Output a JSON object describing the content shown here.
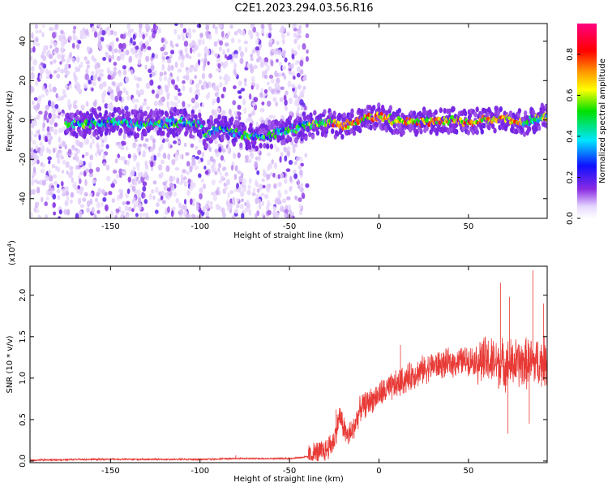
{
  "title": "C2E1.2023.294.03.56.R16",
  "colors": {
    "snr_line": "#e83a36",
    "spectrogram_low": "#d8c6f4",
    "spectrogram_mid": "#7a1fe0",
    "axes": "#000000"
  },
  "chart_data": [
    {
      "type": "heatmap",
      "xlabel": "Height of straight line (km)",
      "ylabel": "Frequency (Hz)",
      "xlim": [
        -195,
        94
      ],
      "ylim": [
        -50,
        49
      ],
      "xticks": [
        -150,
        -100,
        -50,
        0,
        50
      ],
      "yticks": [
        -40,
        -20,
        0,
        20,
        40
      ],
      "grid": false,
      "colorbar": {
        "label": "Normalized spectral amplitude",
        "range": [
          0,
          0.95
        ],
        "ticks": [
          0.0,
          0.2,
          0.4,
          0.6,
          0.8
        ],
        "colormap": "rainbow (white, violet, blue, cyan, green, yellow, orange, red, magenta)"
      },
      "ridge_center_hz": [
        {
          "x": -170,
          "y": -2
        },
        {
          "x": -150,
          "y": -1
        },
        {
          "x": -130,
          "y": -2
        },
        {
          "x": -110,
          "y": -1
        },
        {
          "x": -100,
          "y": -2
        },
        {
          "x": -97,
          "y": -8
        },
        {
          "x": -90,
          "y": -4
        },
        {
          "x": -80,
          "y": -6
        },
        {
          "x": -70,
          "y": -9
        },
        {
          "x": -60,
          "y": -7
        },
        {
          "x": -50,
          "y": -5
        },
        {
          "x": -40,
          "y": -3
        },
        {
          "x": -30,
          "y": -1
        },
        {
          "x": -20,
          "y": -3
        },
        {
          "x": -10,
          "y": 0
        },
        {
          "x": 0,
          "y": 2
        },
        {
          "x": 10,
          "y": -1
        },
        {
          "x": 20,
          "y": -1
        },
        {
          "x": 30,
          "y": -1
        },
        {
          "x": 40,
          "y": 0
        },
        {
          "x": 50,
          "y": -1
        },
        {
          "x": 60,
          "y": 0
        },
        {
          "x": 70,
          "y": 1
        },
        {
          "x": 80,
          "y": -2
        },
        {
          "x": 94,
          "y": 2
        }
      ],
      "noise_region_x": [
        -195,
        -40
      ],
      "peak_amplitude_region_x": [
        -30,
        80
      ]
    },
    {
      "type": "line",
      "xlabel": "Height of straight line (km)",
      "ylabel": "SNR (10 * v/v)",
      "y_multiplier_label": "(x10",
      "y_multiplier_exponent": "4",
      "y_multiplier_close": ")",
      "xlim": [
        -195,
        94
      ],
      "ylim": [
        -0.02,
        2.35
      ],
      "xticks": [
        -150,
        -100,
        -50,
        0,
        50
      ],
      "yticks": [
        0.0,
        0.5,
        1.0,
        1.5,
        2.0
      ],
      "grid": false,
      "series": [
        {
          "color": "#e83a36",
          "envelope": [
            {
              "x": -195,
              "y": 0.01
            },
            {
              "x": -160,
              "y": 0.02
            },
            {
              "x": -100,
              "y": 0.02
            },
            {
              "x": -80,
              "y": 0.03
            },
            {
              "x": -50,
              "y": 0.03
            },
            {
              "x": -40,
              "y": 0.05
            },
            {
              "x": -30,
              "y": 0.12
            },
            {
              "x": -25,
              "y": 0.25
            },
            {
              "x": -22,
              "y": 0.55
            },
            {
              "x": -18,
              "y": 0.3
            },
            {
              "x": -15,
              "y": 0.35
            },
            {
              "x": -10,
              "y": 0.65
            },
            {
              "x": -5,
              "y": 0.72
            },
            {
              "x": 0,
              "y": 0.8
            },
            {
              "x": 10,
              "y": 0.92
            },
            {
              "x": 20,
              "y": 1.05
            },
            {
              "x": 30,
              "y": 1.15
            },
            {
              "x": 40,
              "y": 1.18
            },
            {
              "x": 50,
              "y": 1.22
            },
            {
              "x": 60,
              "y": 1.2
            },
            {
              "x": 70,
              "y": 1.17
            },
            {
              "x": 80,
              "y": 1.18
            },
            {
              "x": 94,
              "y": 1.2
            }
          ],
          "spikes": [
            {
              "x": -80,
              "y": 0.07
            },
            {
              "x": -52,
              "y": 0.05
            },
            {
              "x": -24,
              "y": 0.62
            },
            {
              "x": 12,
              "y": 1.4
            },
            {
              "x": 68,
              "y": 2.15
            },
            {
              "x": 73,
              "y": 1.98
            },
            {
              "x": 86,
              "y": 2.3
            },
            {
              "x": 92,
              "y": 1.9
            },
            {
              "x": 72,
              "y": 0.33
            },
            {
              "x": 84,
              "y": 0.45
            }
          ]
        }
      ]
    }
  ]
}
